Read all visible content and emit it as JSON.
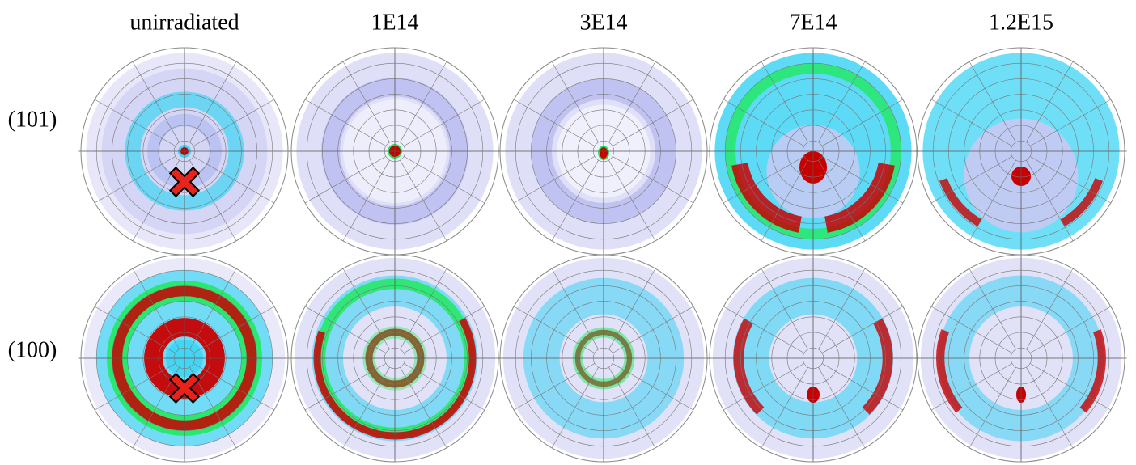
{
  "columns": [
    "unirradiated",
    "1E14",
    "3E14",
    "7E14",
    "1.2E15"
  ],
  "rows": [
    "(101)",
    "(100)"
  ]
}
